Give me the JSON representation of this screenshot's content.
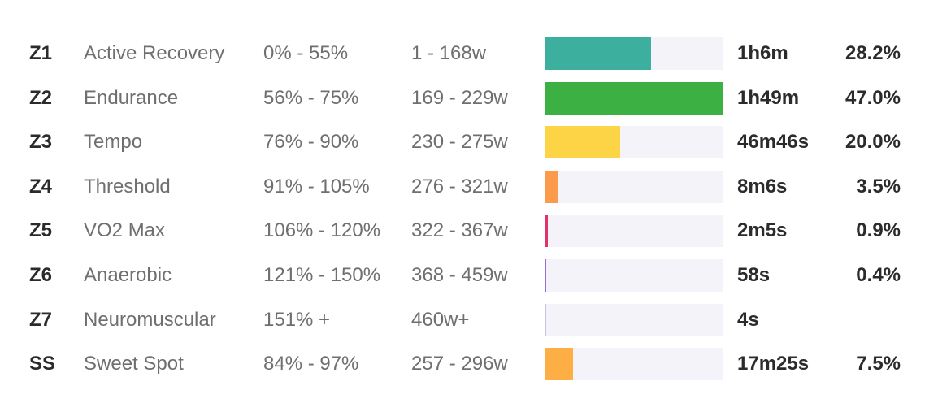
{
  "zones": [
    {
      "code": "Z1",
      "name": "Active Recovery",
      "percent_range": "0% - 55%",
      "watt_range": "1 - 168w",
      "time": "1h6m",
      "share": "28.2%",
      "share_value": 28.2,
      "color": "#3daf9f"
    },
    {
      "code": "Z2",
      "name": "Endurance",
      "percent_range": "56% - 75%",
      "watt_range": "169 - 229w",
      "time": "1h49m",
      "share": "47.0%",
      "share_value": 47.0,
      "color": "#3db043"
    },
    {
      "code": "Z3",
      "name": "Tempo",
      "percent_range": "76% - 90%",
      "watt_range": "230 - 275w",
      "time": "46m46s",
      "share": "20.0%",
      "share_value": 20.0,
      "color": "#fdd446"
    },
    {
      "code": "Z4",
      "name": "Threshold",
      "percent_range": "91% - 105%",
      "watt_range": "276 - 321w",
      "time": "8m6s",
      "share": "3.5%",
      "share_value": 3.5,
      "color": "#fb9a4a"
    },
    {
      "code": "Z5",
      "name": "VO2 Max",
      "percent_range": "106% - 120%",
      "watt_range": "322 - 367w",
      "time": "2m5s",
      "share": "0.9%",
      "share_value": 0.9,
      "color": "#e0336b"
    },
    {
      "code": "Z6",
      "name": "Anaerobic",
      "percent_range": "121% - 150%",
      "watt_range": "368 - 459w",
      "time": "58s",
      "share": "0.4%",
      "share_value": 0.4,
      "color": "#9a6bd1"
    },
    {
      "code": "Z7",
      "name": "Neuromuscular",
      "percent_range": "151% +",
      "watt_range": "460w+",
      "time": "4s",
      "share": "",
      "share_value": 0.05,
      "color": "#c9c3dd"
    },
    {
      "code": "SS",
      "name": "Sweet Spot",
      "percent_range": "84% - 97%",
      "watt_range": "257 - 296w",
      "time": "17m25s",
      "share": "7.5%",
      "share_value": 7.5,
      "color": "#fdaf45"
    }
  ]
}
